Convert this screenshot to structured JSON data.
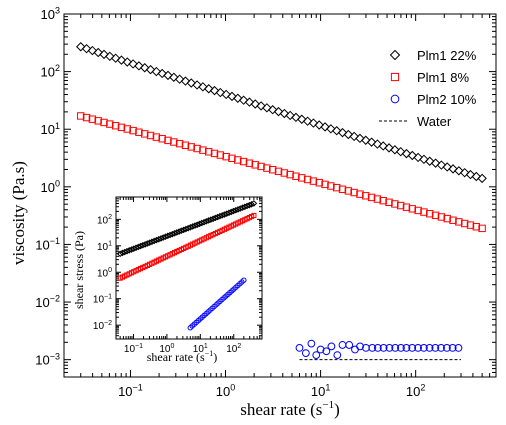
{
  "colors": {
    "plm1_22": "#000000",
    "plm1_8": "#ff0000",
    "plm2_10": "#0000ff",
    "water": "#000000"
  },
  "chart_data": [
    {
      "type": "scatter",
      "xlabel_base": "shear rate (s",
      "xlabel_exp": "−1",
      "xlabel_close": ")",
      "ylabel": "viscosity (Pa.s)",
      "xscale": "log",
      "yscale": "log",
      "xlim": [
        0.02,
        700
      ],
      "ylim": [
        0.0005,
        1000
      ],
      "x_ticks": [
        {
          "value": 0.1,
          "base": "10",
          "exp": "-1"
        },
        {
          "value": 1,
          "base": "10",
          "exp": "0"
        },
        {
          "value": 10,
          "base": "10",
          "exp": "1"
        },
        {
          "value": 100,
          "base": "10",
          "exp": "2"
        }
      ],
      "y_ticks": [
        {
          "value": 0.001,
          "base": "10",
          "exp": "-3"
        },
        {
          "value": 0.01,
          "base": "10",
          "exp": "-2"
        },
        {
          "value": 0.1,
          "base": "10",
          "exp": "-1"
        },
        {
          "value": 1,
          "base": "10",
          "exp": "0"
        },
        {
          "value": 10,
          "base": "10",
          "exp": "1"
        },
        {
          "value": 100,
          "base": "10",
          "exp": "2"
        },
        {
          "value": 1000,
          "base": "10",
          "exp": "3"
        }
      ],
      "legend_position": "top-right",
      "series": [
        {
          "name": "Plm1 22%",
          "marker": "diamond",
          "color_key": "plm1_22",
          "x_start": 0.03,
          "x_end": 500,
          "count": 70,
          "y_start": 270,
          "y_end": 1.4
        },
        {
          "name": "Plm1 8%",
          "marker": "square",
          "color_key": "plm1_8",
          "x_start": 0.03,
          "x_end": 500,
          "count": 70,
          "y_start": 17,
          "y_end": 0.19
        },
        {
          "name": "Plm2 10%",
          "marker": "circle",
          "color_key": "plm2_10",
          "x": [
            6,
            7,
            8,
            9,
            10,
            11.5,
            13,
            15,
            17,
            20,
            23,
            26,
            30,
            35,
            40,
            46,
            53,
            61,
            70,
            80,
            92,
            106,
            122,
            140,
            161,
            185,
            213,
            245,
            282
          ],
          "y": [
            0.0016,
            0.0013,
            0.0019,
            0.0012,
            0.0015,
            0.0014,
            0.0017,
            0.0012,
            0.0018,
            0.0018,
            0.0015,
            0.0017,
            0.0016,
            0.0016,
            0.0016,
            0.0016,
            0.0016,
            0.0016,
            0.0016,
            0.0016,
            0.0016,
            0.0016,
            0.0016,
            0.0016,
            0.0016,
            0.0016,
            0.0016,
            0.0016,
            0.0016
          ]
        },
        {
          "name": "Water",
          "marker": "dashed-line",
          "color_key": "water",
          "x": [
            6,
            300
          ],
          "y": [
            0.001,
            0.001
          ]
        }
      ]
    },
    {
      "type": "scatter",
      "xlabel_base": "shear rate (s",
      "xlabel_exp": "−1",
      "xlabel_close": ")",
      "ylabel": "shear stress (Pa)",
      "xscale": "log",
      "yscale": "log",
      "xlim": [
        0.03,
        700
      ],
      "ylim": [
        0.003,
        700
      ],
      "x_ticks": [
        {
          "value": 0.1,
          "base": "10",
          "exp": "-1"
        },
        {
          "value": 1,
          "base": "10",
          "exp": "0"
        },
        {
          "value": 10,
          "base": "10",
          "exp": "1"
        },
        {
          "value": 100,
          "base": "10",
          "exp": "2"
        }
      ],
      "y_ticks": [
        {
          "value": 0.01,
          "base": "10",
          "exp": "-2"
        },
        {
          "value": 0.1,
          "base": "10",
          "exp": "-1"
        },
        {
          "value": 1,
          "base": "10",
          "exp": "0"
        },
        {
          "value": 10,
          "base": "10",
          "exp": "1"
        },
        {
          "value": 100,
          "base": "10",
          "exp": "2"
        }
      ],
      "series": [
        {
          "marker": "diamond",
          "color_key": "plm1_22",
          "x_start": 0.04,
          "x_end": 400,
          "count": 60,
          "y_start": 5,
          "y_end": 400
        },
        {
          "marker": "square",
          "color_key": "plm1_8",
          "x_start": 0.04,
          "x_end": 400,
          "count": 60,
          "y_start": 0.6,
          "y_end": 140
        },
        {
          "marker": "circle",
          "color_key": "plm2_10",
          "x_start": 5,
          "x_end": 200,
          "count": 28,
          "y_start": 0.008,
          "y_end": 0.5
        }
      ]
    }
  ]
}
